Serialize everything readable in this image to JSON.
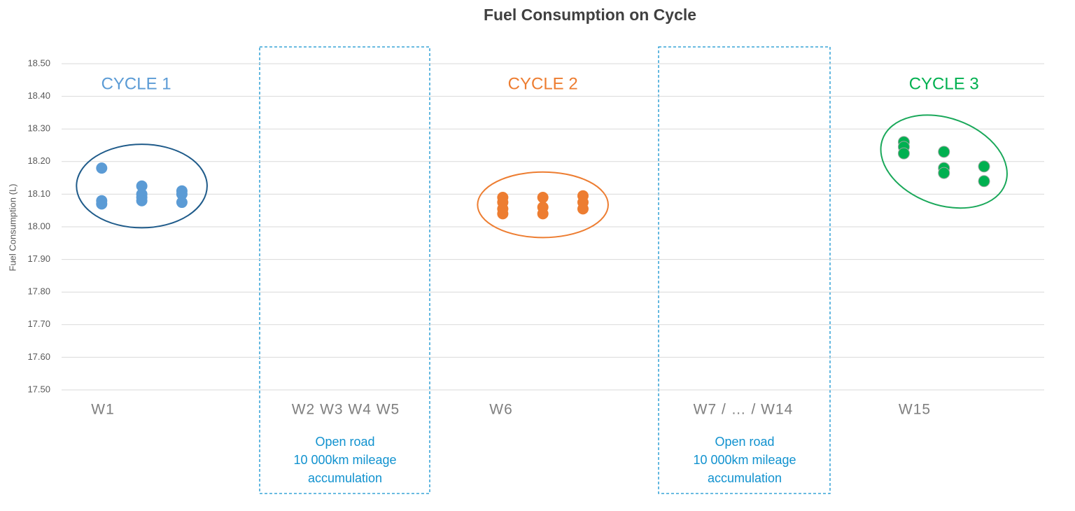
{
  "chart_data": {
    "type": "scatter",
    "title": "Fuel Consumption on Cycle",
    "y_label": "Fuel Consumption (L)",
    "xlim": [
      0,
      24.5
    ],
    "ylim": [
      17.5,
      18.5
    ],
    "yticks": [
      {
        "value": 17.5,
        "label": "17.50"
      },
      {
        "value": 17.6,
        "label": "17.60"
      },
      {
        "value": 17.7,
        "label": "17.70"
      },
      {
        "value": 17.8,
        "label": "17.80"
      },
      {
        "value": 17.9,
        "label": "17.90"
      },
      {
        "value": 18.0,
        "label": "18.00"
      },
      {
        "value": 18.1,
        "label": "18.10"
      },
      {
        "value": 18.2,
        "label": "18.20"
      },
      {
        "value": 18.3,
        "label": "18.30"
      },
      {
        "value": 18.4,
        "label": "18.40"
      },
      {
        "value": 18.5,
        "label": "18.50"
      }
    ],
    "grid": true,
    "x_labels": [
      "W1",
      "W2   W3   W4   W5",
      "W6",
      "W7 / … / W14",
      "W15"
    ],
    "notes": [
      [
        "Open road",
        "10 000km mileage",
        "accumulation"
      ],
      [
        "Open road",
        "10 000km mileage",
        "accumulation"
      ]
    ],
    "series": [
      {
        "name": "CYCLE 1",
        "color": "#5b9bd5",
        "outline": "#1f5b8a",
        "x": [
          1,
          1,
          1,
          2,
          2,
          2,
          2,
          3,
          3,
          3
        ],
        "values": [
          18.18,
          18.08,
          18.07,
          18.125,
          18.1,
          18.09,
          18.08,
          18.11,
          18.1,
          18.075
        ]
      },
      {
        "name": "CYCLE 2",
        "color": "#ed7d31",
        "outline": "#ed7d31",
        "x": [
          11,
          11,
          11,
          11,
          12,
          12,
          12,
          13,
          13,
          13
        ],
        "values": [
          18.09,
          18.075,
          18.055,
          18.04,
          18.09,
          18.06,
          18.04,
          18.095,
          18.075,
          18.055
        ]
      },
      {
        "name": "CYCLE 3",
        "color": "#00b050",
        "outline": "#1aa85a",
        "x": [
          21,
          21,
          21,
          22,
          22,
          22,
          23,
          23
        ],
        "values": [
          18.26,
          18.245,
          18.225,
          18.23,
          18.18,
          18.165,
          18.185,
          18.14
        ]
      }
    ]
  }
}
